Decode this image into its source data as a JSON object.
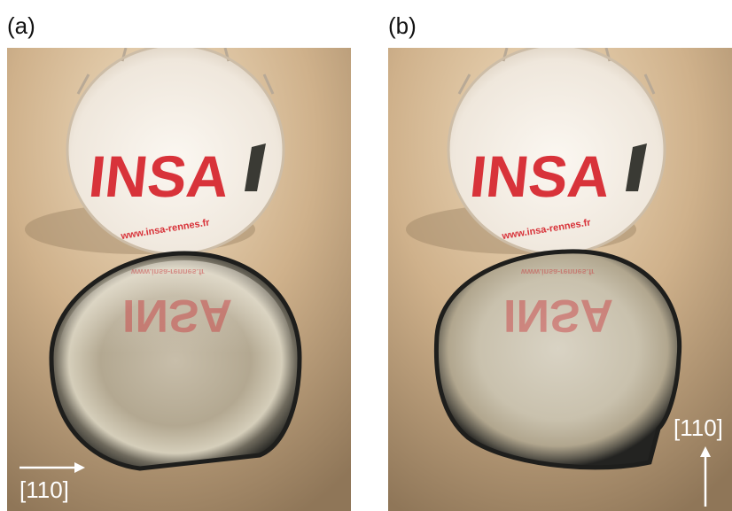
{
  "panels": [
    {
      "label": "(a)",
      "logo_text": "INSA",
      "url_text": "www.insa-rennes.fr",
      "reflection_text": "INSA",
      "reflection_url_text": "www.insa-rennes.fr",
      "direction_label": "[110]",
      "arrow_direction": "horizontal-right"
    },
    {
      "label": "(b)",
      "logo_text": "INSA",
      "url_text": "www.insa-rennes.fr",
      "reflection_text": "INSA",
      "reflection_url_text": "www.insa-rennes.fr",
      "direction_label": "[110]",
      "arrow_direction": "vertical-up"
    }
  ],
  "colors": {
    "logo_red": "#d8333a",
    "arrow_white": "#ffffff",
    "background_beige": "#c9ab84"
  }
}
